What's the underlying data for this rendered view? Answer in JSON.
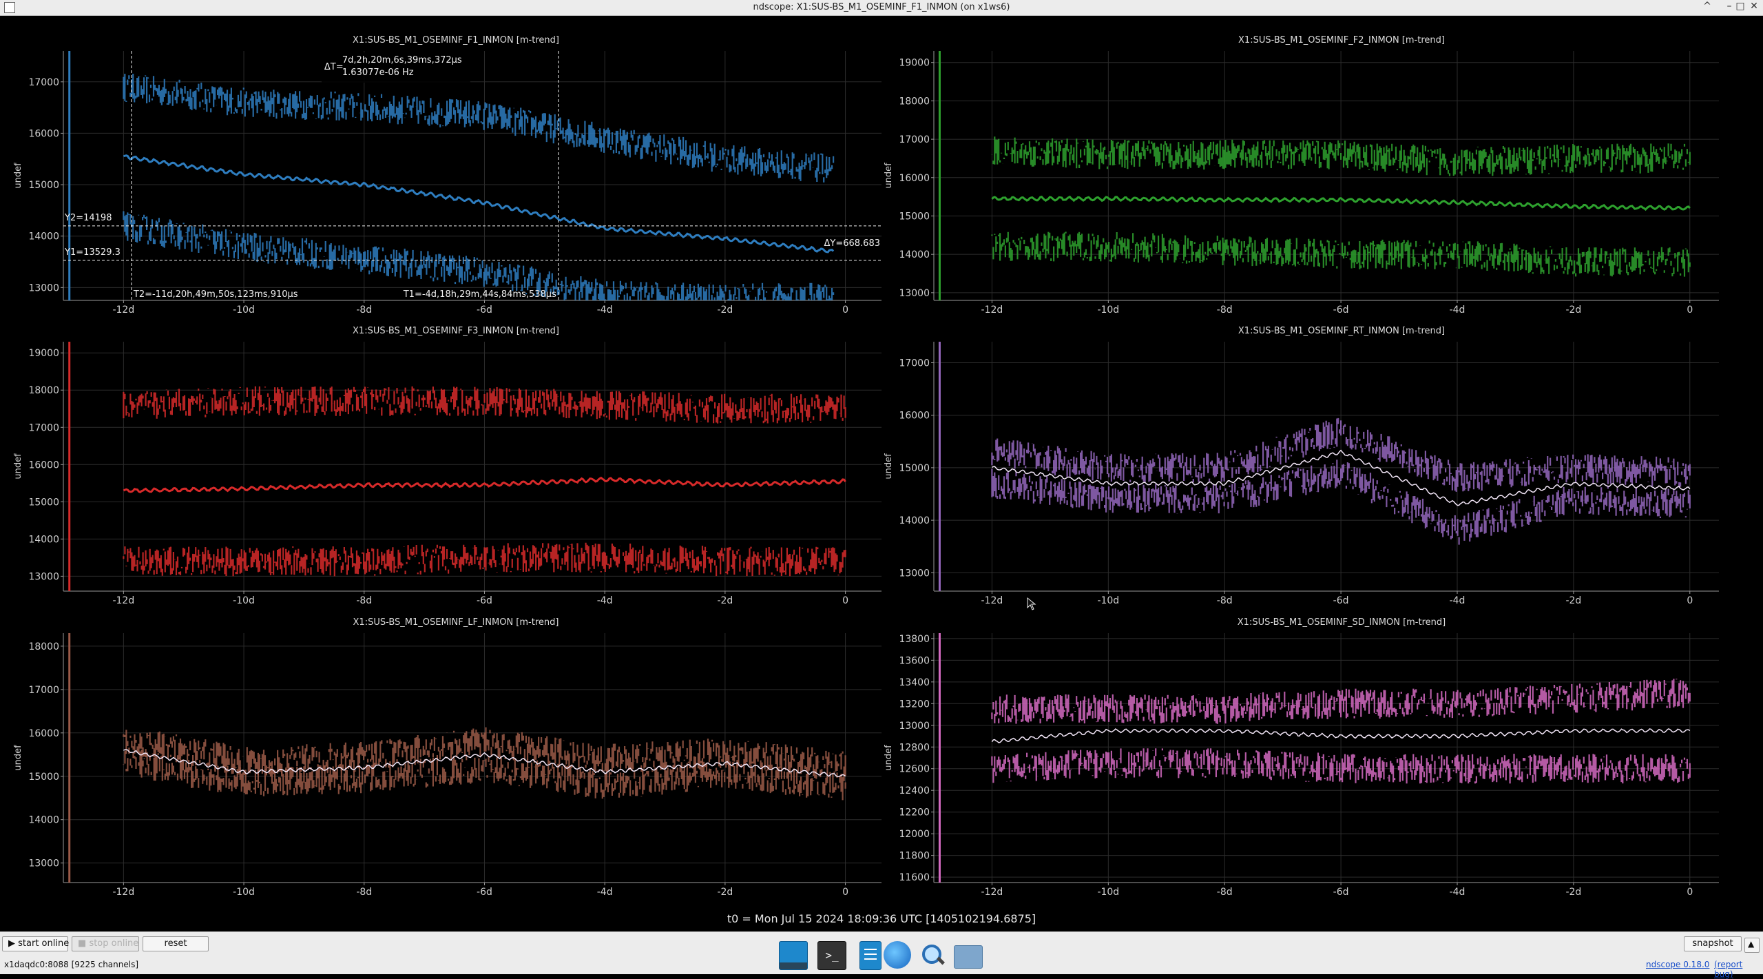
{
  "window": {
    "title": "ndscope: X1:SUS-BS_M1_OSEMINF_F1_INMON (on x1ws6)",
    "controls": [
      "^",
      "–",
      "□",
      "✕"
    ]
  },
  "t0_label": "t0 = Mon Jul 15 2024 18:09:36 UTC [1405102194.6875]",
  "colors": {
    "f1": "#2e7dbf",
    "f2": "#2ea12e",
    "f3": "#d72a2a",
    "rt": "#9467bd",
    "lf": "#9b5a48",
    "sd": "#d46ac1"
  },
  "plots": [
    {
      "id": "f1",
      "title": "X1:SUS-BS_M1_OSEMINF_F1_INMON [m-trend]",
      "ylabel": "undef",
      "yticks": [
        "17000",
        "16000",
        "15000",
        "14000",
        "13000"
      ],
      "xticks": [
        "-12d",
        "-10d",
        "-8d",
        "-6d",
        "-4d",
        "-2d",
        "0"
      ],
      "cursors": {
        "t1": "T1=-4d,18h,29m,44s,84ms,538µs",
        "t2": "T2=-11d,20h,49m,50s,123ms,910µs",
        "y1": "Y1=13529.3",
        "y2": "Y2=14198",
        "dy": "ΔY=668.683",
        "dt_label": "ΔT=",
        "dt_value": "7d,2h,20m,6s,39ms,372µs",
        "dt_freq": "1.63077e-06 Hz"
      }
    },
    {
      "id": "f2",
      "title": "X1:SUS-BS_M1_OSEMINF_F2_INMON [m-trend]",
      "ylabel": "undef",
      "yticks": [
        "19000",
        "18000",
        "17000",
        "16000",
        "15000",
        "14000",
        "13000"
      ],
      "xticks": [
        "-12d",
        "-10d",
        "-8d",
        "-6d",
        "-4d",
        "-2d",
        "0"
      ]
    },
    {
      "id": "f3",
      "title": "X1:SUS-BS_M1_OSEMINF_F3_INMON [m-trend]",
      "ylabel": "undef",
      "yticks": [
        "19000",
        "18000",
        "17000",
        "16000",
        "15000",
        "14000",
        "13000"
      ],
      "xticks": [
        "-12d",
        "-10d",
        "-8d",
        "-6d",
        "-4d",
        "-2d",
        "0"
      ]
    },
    {
      "id": "rt",
      "title": "X1:SUS-BS_M1_OSEMINF_RT_INMON [m-trend]",
      "ylabel": "undef",
      "yticks": [
        "17000",
        "16000",
        "15000",
        "14000",
        "13000"
      ],
      "xticks": [
        "-12d",
        "-10d",
        "-8d",
        "-6d",
        "-4d",
        "-2d",
        "0"
      ]
    },
    {
      "id": "lf",
      "title": "X1:SUS-BS_M1_OSEMINF_LF_INMON [m-trend]",
      "ylabel": "undef",
      "yticks": [
        "18000",
        "17000",
        "16000",
        "15000",
        "14000",
        "13000"
      ],
      "xticks": [
        "-12d",
        "-10d",
        "-8d",
        "-6d",
        "-4d",
        "-2d",
        "0"
      ]
    },
    {
      "id": "sd",
      "title": "X1:SUS-BS_M1_OSEMINF_SD_INMON [m-trend]",
      "ylabel": "undef",
      "yticks": [
        "13800",
        "13600",
        "13400",
        "13200",
        "13000",
        "12800",
        "12600",
        "12400",
        "12200",
        "12000",
        "11800",
        "11600"
      ],
      "xticks": [
        "-12d",
        "-10d",
        "-8d",
        "-6d",
        "-4d",
        "-2d",
        "0"
      ]
    }
  ],
  "chart_data": [
    {
      "type": "line",
      "title": "X1:SUS-BS_M1_OSEMINF_F1_INMON [m-trend]",
      "ylabel": "undef",
      "xlim": [
        -13,
        0.6
      ],
      "ylim": [
        12750,
        17600
      ],
      "x": [
        -12,
        -10,
        -8,
        -6,
        -4,
        -2,
        -0.2
      ],
      "series": [
        {
          "values": [
            15550,
            15200,
            15000,
            14650,
            14150,
            13950,
            13700
          ]
        },
        {
          "values": [
            16900,
            16600,
            16500,
            16350,
            15900,
            15500,
            15300
          ]
        },
        {
          "values": [
            14200,
            13800,
            13550,
            13300,
            12850,
            12800,
            12800
          ]
        }
      ]
    },
    {
      "type": "line",
      "title": "X1:SUS-BS_M1_OSEMINF_F2_INMON [m-trend]",
      "ylabel": "undef",
      "xlim": [
        -13,
        0.5
      ],
      "ylim": [
        12800,
        19300
      ],
      "x": [
        -12,
        -10,
        -8,
        -6,
        -4,
        -2,
        0
      ],
      "series": [
        {
          "values": [
            15450,
            15450,
            15420,
            15420,
            15350,
            15250,
            15200
          ]
        },
        {
          "values": [
            16700,
            16600,
            16600,
            16600,
            16400,
            16500,
            16500
          ]
        },
        {
          "values": [
            14200,
            14200,
            14100,
            14000,
            14000,
            13800,
            13800
          ]
        }
      ]
    },
    {
      "type": "line",
      "title": "X1:SUS-BS_M1_OSEMINF_F3_INMON [m-trend]",
      "ylabel": "undef",
      "xlim": [
        -13,
        0.6
      ],
      "ylim": [
        12600,
        19300
      ],
      "x": [
        -12,
        -10,
        -8,
        -6,
        -4,
        -2,
        0
      ],
      "series": [
        {
          "values": [
            15300,
            15350,
            15450,
            15450,
            15600,
            15450,
            15550
          ]
        },
        {
          "values": [
            17600,
            17700,
            17700,
            17700,
            17600,
            17500,
            17500
          ]
        },
        {
          "values": [
            13400,
            13400,
            13400,
            13500,
            13500,
            13400,
            13400
          ]
        }
      ]
    },
    {
      "type": "line",
      "title": "X1:SUS-BS_M1_OSEMINF_RT_INMON [m-trend]",
      "ylabel": "undef",
      "xlim": [
        -13,
        0.5
      ],
      "ylim": [
        12650,
        17400
      ],
      "x": [
        -12,
        -10,
        -8,
        -6,
        -4,
        -2,
        0
      ],
      "series": [
        {
          "values": [
            15000,
            14700,
            14700,
            15300,
            14300,
            14700,
            14600
          ]
        },
        {
          "values": [
            15300,
            15000,
            15000,
            15700,
            14800,
            15000,
            14900
          ]
        },
        {
          "values": [
            14700,
            14400,
            14400,
            14900,
            13800,
            14400,
            14300
          ]
        }
      ]
    },
    {
      "type": "line",
      "title": "X1:SUS-BS_M1_OSEMINF_LF_INMON [m-trend]",
      "ylabel": "undef",
      "xlim": [
        -13,
        0.6
      ],
      "ylim": [
        12550,
        18300
      ],
      "x": [
        -12,
        -10,
        -8,
        -6,
        -4,
        -2,
        0
      ],
      "series": [
        {
          "values": [
            15600,
            15100,
            15200,
            15500,
            15100,
            15300,
            15000
          ]
        },
        {
          "values": [
            15850,
            15350,
            15450,
            15800,
            15400,
            15550,
            15250
          ]
        },
        {
          "values": [
            15350,
            14850,
            14950,
            15200,
            14800,
            15050,
            14750
          ]
        }
      ]
    },
    {
      "type": "line",
      "title": "X1:SUS-BS_M1_OSEMINF_SD_INMON [m-trend]",
      "ylabel": "undef",
      "xlim": [
        -13,
        0.5
      ],
      "ylim": [
        11550,
        13850
      ],
      "x": [
        -12,
        -10,
        -8,
        -6,
        -4,
        -2,
        0
      ],
      "series": [
        {
          "values": [
            12850,
            12950,
            12950,
            12900,
            12900,
            12950,
            12950
          ]
        },
        {
          "values": [
            13150,
            13150,
            13150,
            13200,
            13200,
            13250,
            13300
          ]
        },
        {
          "values": [
            12600,
            12650,
            12650,
            12600,
            12600,
            12600,
            12600
          ]
        }
      ]
    }
  ],
  "bottom": {
    "start_online": "start online",
    "stop_online": "stop online",
    "reset": "reset",
    "snapshot": "snapshot",
    "server": "x1daqdc0:8088  [9225 channels]",
    "version": "ndscope 0.18.0",
    "report": "(report bug)"
  },
  "dock": [
    "desktop-icon",
    "terminal-icon",
    "text-editor-icon",
    "browser-icon",
    "search-icon",
    "folder-icon"
  ]
}
